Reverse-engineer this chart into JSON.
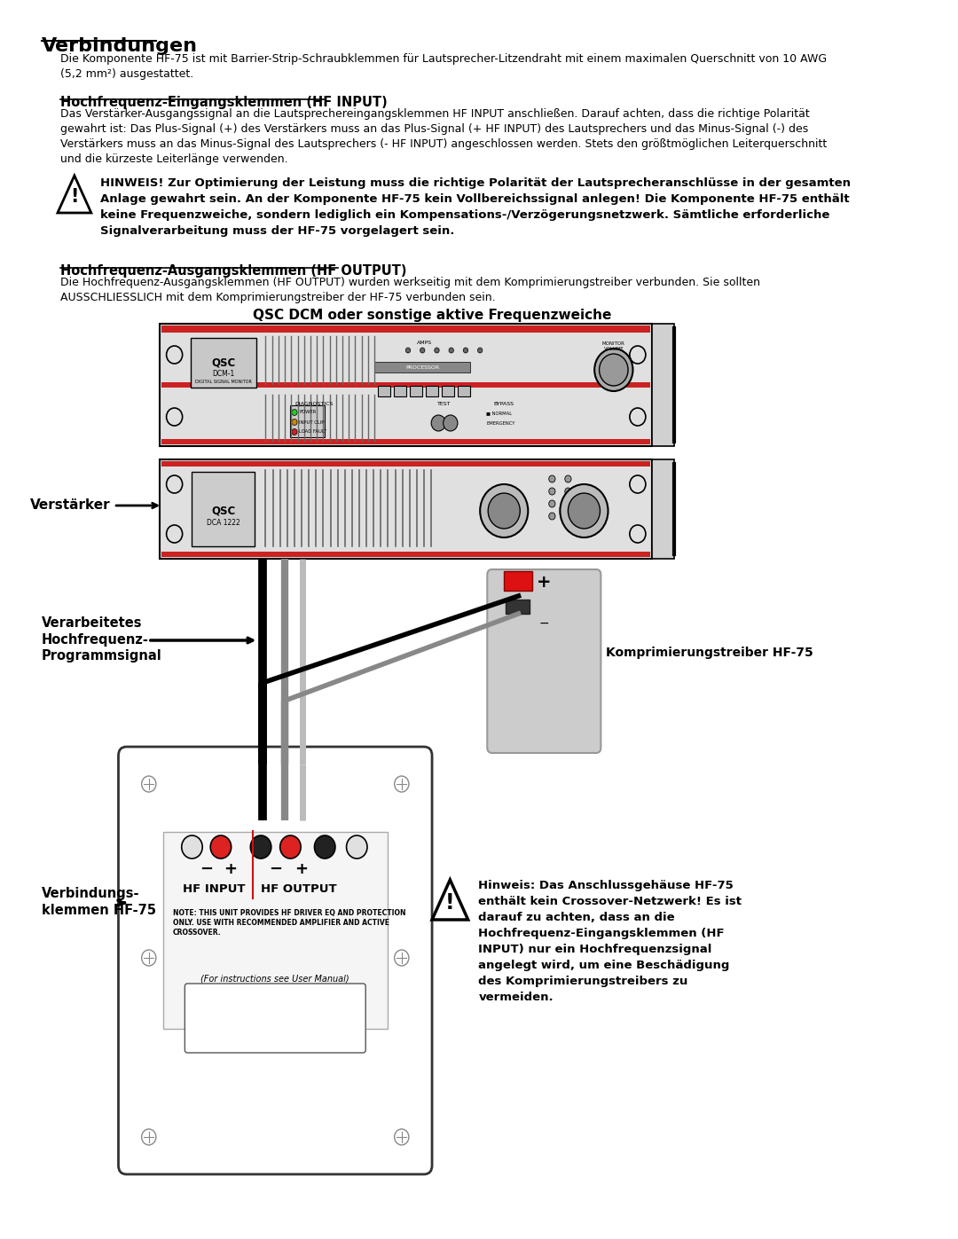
{
  "bg_color": "#ffffff",
  "title": "Verbindungen",
  "para1": "Die Komponente HF-75 ist mit Barrier-Strip-Schraubklemmen für Lautsprecher-Litzendraht mit einem maximalen Querschnitt von 10 AWG\n(5,2 mm²) ausgestattet.",
  "section1_title": "Hochfrequenz-Eingangsklemmen (HF INPUT)",
  "section1_text": "Das Verstärker-Ausgangssignal an die Lautsprechereingangsklemmen HF INPUT anschließen. Darauf achten, dass die richtige Polarität\ngewahrt ist: Das Plus-Signal (+) des Verstärkers muss an das Plus-Signal (+ HF INPUT) des Lautsprechers und das Minus-Signal (-) des\nVerstärkers muss an das Minus-Signal des Lautsprechers (- HF INPUT) angeschlossen werden. Stets den größtmöglichen Leiterquerschnitt\nund die kürzeste Leiterlänge verwenden.",
  "warning1_text": "HINWEIS! Zur Optimierung der Leistung muss die richtige Polarität der Lautsprecheranschlüsse in der gesamten\nAnlage gewahrt sein. An der Komponente HF-75 kein Vollbereichssignal anlegen! Die Komponente HF-75 enthält\nkeine Frequenzweiche, sondern lediglich ein Kompensations-/Verzögerungsnetzwerk. Sämtliche erforderliche\nSignalverarbeitung muss der HF-75 vorgelagert sein.",
  "section2_title": "Hochfrequenz-Ausgangsklemmen (HF OUTPUT)",
  "section2_text": "Die Hochfrequenz-Ausgangsklemmen (HF OUTPUT) wurden werkseitig mit dem Komprimierungstreiber verbunden. Sie sollten\nAUSSCHLIESSLICH mit dem Komprimierungstreiber der HF-75 verbunden sein.",
  "diagram_title": "QSC DCM oder sonstige aktive Frequenzweiche",
  "label_verstaerker": "Verstärker",
  "label_verarbeitet": "Verarbeitetes\nHochfrequenz-\nProgrammsignal",
  "label_verbindungs": "Verbindungs-\nklemmen HF-75",
  "label_komprimierung": "Komprimierungstreiber HF-75",
  "label_hf_input": "HF INPUT",
  "label_hf_output": "HF OUTPUT",
  "label_note": "NOTE: THIS UNIT PROVIDES HF DRIVER EQ AND PROTECTION\nONLY. USE WITH RECOMMENDED AMPLIFIER AND ACTIVE\nCROSSOVER.",
  "label_for_instructions": "(For instructions see User Manual)",
  "warning2_text": "Hinweis: Das Anschlussgehäuse HF-75\nenthält kein Crossover-Netzwerk! Es ist\ndarauf zu achten, dass an die\nHochfrequenz-Eingangsklemmen (HF\nINPUT) nur ein Hochfrequenzsignal\nangelegt wird, um eine Beschädigung\ndes Komprimierungstreibers zu\nvermeiden."
}
